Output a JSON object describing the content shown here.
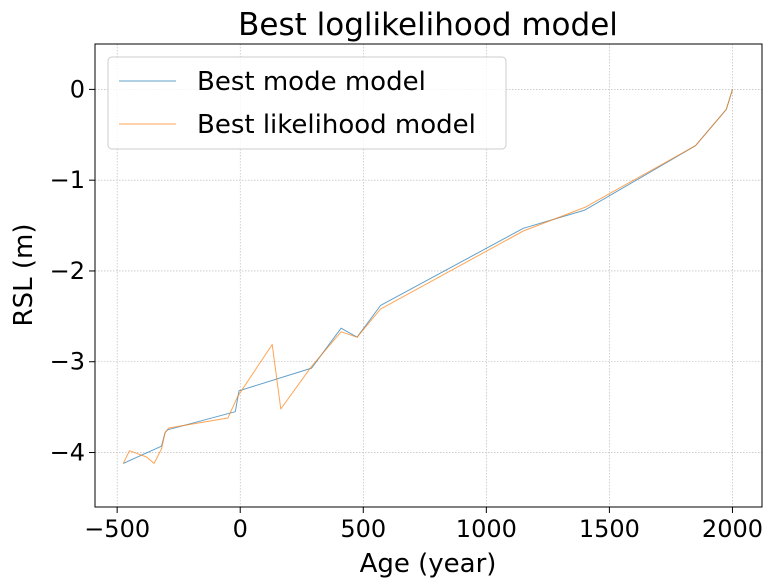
{
  "chart_data": {
    "type": "line",
    "title": "Best loglikelihood model",
    "xlabel": "Age (year)",
    "ylabel": "RSL (m)",
    "xlim": [
      -590,
      2120
    ],
    "ylim": [
      -4.6,
      0.5
    ],
    "xticks": [
      -500,
      0,
      500,
      1000,
      1500,
      2000
    ],
    "xtick_labels": [
      "−500",
      "0",
      "500",
      "1000",
      "1500",
      "2000"
    ],
    "yticks": [
      0,
      -1,
      -2,
      -3,
      -4
    ],
    "ytick_labels": [
      "0",
      "−1",
      "−2",
      "−3",
      "−4"
    ],
    "grid": true,
    "legend_position": "top-left",
    "series": [
      {
        "name": "Best mode model",
        "color": "#1f77b4",
        "x": [
          -475,
          -320,
          -305,
          -295,
          -20,
          -5,
          290,
          410,
          475,
          570,
          1150,
          1400,
          1850,
          1975,
          2000
        ],
        "y": [
          -4.12,
          -3.93,
          -3.78,
          -3.75,
          -3.55,
          -3.32,
          -3.07,
          -2.63,
          -2.73,
          -2.38,
          -1.53,
          -1.33,
          -0.62,
          -0.22,
          0.0
        ]
      },
      {
        "name": "Best likelihood model",
        "color": "#ff7f0e",
        "x": [
          -475,
          -450,
          -380,
          -350,
          -320,
          -305,
          -290,
          -50,
          -10,
          130,
          165,
          290,
          410,
          475,
          570,
          1150,
          1400,
          1850,
          1975,
          2000
        ],
        "y": [
          -4.12,
          -3.98,
          -4.05,
          -4.12,
          -3.96,
          -3.78,
          -3.73,
          -3.62,
          -3.38,
          -2.81,
          -3.52,
          -3.05,
          -2.67,
          -2.73,
          -2.42,
          -1.56,
          -1.3,
          -0.62,
          -0.22,
          0.0
        ]
      }
    ]
  }
}
